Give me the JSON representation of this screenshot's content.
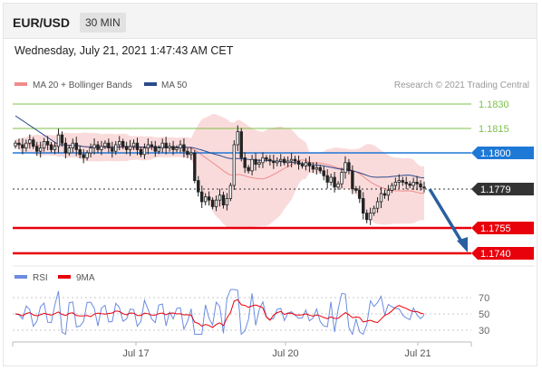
{
  "header": {
    "symbol": "EUR/USD",
    "timeframe": "30 MIN"
  },
  "datetime": "Wednesday, July 21, 2021 1:47:43 AM CET",
  "legend": {
    "bollinger": "MA 20 + Bollinger Bands",
    "ma50": "MA 50",
    "credit": "Research © 2021 Trading Central"
  },
  "colors": {
    "resistance": "#7cc148",
    "pivot": "#1e78d6",
    "support": "#e8000b",
    "current": "#333333",
    "bollinger": "#f7c8c8",
    "ma50": "#2a4a8c",
    "arrow": "#2a5f9e",
    "rsi": "#6b8ce0",
    "rsi_ma": "#e8000b"
  },
  "levels": [
    {
      "label": "1.1830",
      "type": "resistance"
    },
    {
      "label": "1.1815",
      "type": "resistance"
    },
    {
      "label": "1.1800",
      "type": "pivot"
    },
    {
      "label": "1.1779",
      "type": "current"
    },
    {
      "label": "1.1755",
      "type": "support"
    },
    {
      "label": "1.1740",
      "type": "support"
    }
  ],
  "rsi_panel": {
    "legend_rsi": "RSI",
    "legend_ma": "9MA",
    "ticks": [
      "70",
      "50",
      "30"
    ]
  },
  "x_axis": [
    "Jul 17",
    "Jul 20",
    "Jul 21"
  ],
  "chart_data": {
    "type": "candlestick",
    "y_levels": [
      1.183,
      1.1815,
      1.18,
      1.1779,
      1.1755,
      1.174
    ],
    "closes_approx": [
      1.1806,
      1.1805,
      1.1803,
      1.1806,
      1.1808,
      1.1804,
      1.1801,
      1.1803,
      1.1807,
      1.1805,
      1.1802,
      1.1804,
      1.1811,
      1.1806,
      1.18,
      1.1803,
      1.1806,
      1.1802,
      1.1799,
      1.1797,
      1.18,
      1.1803,
      1.1805,
      1.1802,
      1.1804,
      1.1806,
      1.1803,
      1.1801,
      1.1805,
      1.1807,
      1.1804,
      1.1802,
      1.1804,
      1.1806,
      1.1802,
      1.1799,
      1.1803,
      1.1805,
      1.1804,
      1.1801,
      1.1803,
      1.1806,
      1.1803,
      1.1804,
      1.1802,
      1.1803,
      1.1805,
      1.1801,
      1.1799,
      1.18,
      1.1783,
      1.1776,
      1.177,
      1.1773,
      1.1771,
      1.1767,
      1.1771,
      1.1774,
      1.1768,
      1.1772,
      1.178,
      1.1805,
      1.1813,
      1.1797,
      1.1791,
      1.1789,
      1.1796,
      1.1793,
      1.1794,
      1.1797,
      1.1796,
      1.1795,
      1.1794,
      1.1795,
      1.1796,
      1.1794,
      1.1795,
      1.1796,
      1.1795,
      1.1793,
      1.1792,
      1.1794,
      1.1792,
      1.179,
      1.1791,
      1.1789,
      1.1786,
      1.1782,
      1.1785,
      1.1779,
      1.1781,
      1.1788,
      1.1794,
      1.1789,
      1.1778,
      1.1777,
      1.1772,
      1.1763,
      1.1759,
      1.1763,
      1.1766,
      1.177,
      1.1775,
      1.1774,
      1.1777,
      1.178,
      1.1782,
      1.1783,
      1.1782,
      1.1781,
      1.178,
      1.1782,
      1.1781,
      1.1779,
      1.1779
    ],
    "rsi_ticks": [
      70,
      50,
      30
    ]
  }
}
